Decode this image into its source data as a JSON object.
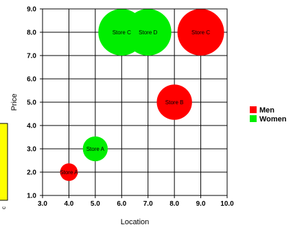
{
  "chart_data": {
    "type": "scatter",
    "title": "",
    "xlabel": "Location",
    "ylabel": "Price",
    "xlim": [
      3.0,
      10.0
    ],
    "ylim": [
      1.0,
      9.0
    ],
    "x_ticks": [
      "3.0",
      "4.0",
      "5.0",
      "6.0",
      "7.0",
      "8.0",
      "9.0",
      "10.0"
    ],
    "y_ticks": [
      "1.0",
      "2.0",
      "3.0",
      "4.0",
      "5.0",
      "6.0",
      "7.0",
      "8.0",
      "9.0"
    ],
    "grid": true,
    "legend_position": "right",
    "series": [
      {
        "name": "Men",
        "color": "#ff0000",
        "points": [
          {
            "label": "Store A",
            "x": 4.0,
            "y": 2.0,
            "size": 1
          },
          {
            "label": "Store B",
            "x": 8.0,
            "y": 5.0,
            "size": 4
          },
          {
            "label": "Store C",
            "x": 9.0,
            "y": 8.0,
            "size": 7
          }
        ]
      },
      {
        "name": "Women",
        "color": "#00ee00",
        "points": [
          {
            "label": "Store A",
            "x": 5.0,
            "y": 3.0,
            "size": 2
          },
          {
            "label": "Store C",
            "x": 6.0,
            "y": 8.0,
            "size": 7
          },
          {
            "label": "Store D",
            "x": 7.0,
            "y": 8.0,
            "size": 7
          }
        ]
      }
    ],
    "side_panel": {
      "color": "#ffff00",
      "label": "c"
    }
  }
}
